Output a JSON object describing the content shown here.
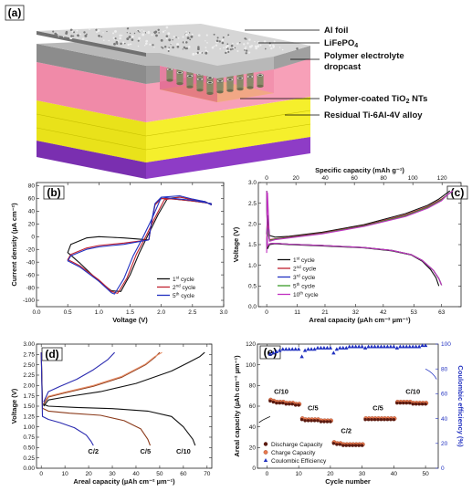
{
  "panels": {
    "a": {
      "letter": "(a)",
      "labels": [
        "Al foil",
        "LiFePO4",
        "Polymer electrolyte",
        "dropcast",
        "Residual Ti-6Al-4V alloy"
      ],
      "lifepo4_sub": "4",
      "nt_prefix": "Polymer-coated TiO",
      "nt_sub": "2",
      "nt_suffix": " NTs",
      "colors": {
        "foil": "#d6d6d6",
        "electrolyte": "#f08aa8",
        "nanotubes": "#f5ef2c",
        "alloy": "#8e3cc6"
      }
    }
  },
  "chart_data": [
    {
      "id": "b",
      "letter": "(b)",
      "type": "line",
      "xlabel": "Voltage (V)",
      "ylabel": "Current density (µA cm⁻²)",
      "xlim": [
        0.0,
        3.0
      ],
      "ylim": [
        -110,
        85
      ],
      "xticks": [
        0.0,
        0.5,
        1.0,
        1.5,
        2.0,
        2.5,
        3.0
      ],
      "xticklabels": [
        "0.0",
        "0.5",
        "1.0",
        "1.5",
        "2.0",
        "2.5",
        "3.0"
      ],
      "yticks": [
        -100,
        -80,
        -60,
        -40,
        -20,
        0,
        20,
        40,
        60,
        80
      ],
      "yticklabels": [
        "-100",
        "-80",
        "-60",
        "-40",
        "-20",
        "0",
        "20",
        "40",
        "60",
        "80"
      ],
      "legend": "bottom-right",
      "series": [
        {
          "name": "1st cycle",
          "sup": "st",
          "base": "1",
          "rest": " cycle",
          "color": "#111111",
          "x": [
            1.8,
            1.4,
            1.2,
            1.0,
            0.8,
            0.55,
            0.5,
            0.7,
            1.0,
            1.2,
            1.35,
            1.5,
            1.65,
            1.8,
            1.95,
            2.1,
            2.3,
            2.5,
            2.7,
            2.8,
            2.8,
            2.5,
            2.2,
            2.0,
            1.9,
            1.85,
            1.8
          ],
          "y": [
            -5,
            -2,
            -1,
            0,
            -2,
            -12,
            -25,
            -42,
            -70,
            -85,
            -86,
            -60,
            -25,
            5,
            35,
            60,
            62,
            58,
            55,
            50,
            52,
            56,
            59,
            60,
            50,
            25,
            -5
          ]
        },
        {
          "name": "2nd cycle",
          "sup": "nd",
          "base": "2",
          "rest": " cycle",
          "color": "#c0202f",
          "x": [
            1.8,
            1.4,
            1.2,
            1.0,
            0.8,
            0.55,
            0.5,
            0.7,
            1.0,
            1.2,
            1.3,
            1.45,
            1.6,
            1.75,
            1.9,
            2.05,
            2.3,
            2.5,
            2.7,
            2.8,
            2.8,
            2.5,
            2.2,
            2.0,
            1.9,
            1.85,
            1.8
          ],
          "y": [
            -5,
            -10,
            -12,
            -14,
            -18,
            -28,
            -36,
            -46,
            -68,
            -86,
            -89,
            -65,
            -28,
            0,
            30,
            58,
            62,
            58,
            55,
            50,
            52,
            56,
            59,
            60,
            50,
            25,
            -5
          ]
        },
        {
          "name": "5th cycle",
          "sup": "th",
          "base": "5",
          "rest": " cycle",
          "color": "#2030c0",
          "x": [
            1.8,
            1.4,
            1.2,
            1.0,
            0.8,
            0.55,
            0.5,
            0.7,
            1.0,
            1.2,
            1.25,
            1.4,
            1.55,
            1.7,
            1.85,
            2.0,
            2.3,
            2.5,
            2.7,
            2.8,
            2.8,
            2.5,
            2.2,
            2.0,
            1.9,
            1.85,
            1.8
          ],
          "y": [
            -5,
            -12,
            -14,
            -16,
            -20,
            -30,
            -38,
            -48,
            -70,
            -88,
            -90,
            -66,
            -30,
            -2,
            28,
            62,
            64,
            59,
            55,
            50,
            52,
            57,
            60,
            62,
            52,
            27,
            -5
          ]
        }
      ]
    },
    {
      "id": "c",
      "letter": "(c)",
      "type": "line",
      "xlabel": "Areal capacity (µAh cm⁻² µm⁻¹)",
      "x2label": "Specific capacity (mAh g⁻¹)",
      "ylabel": "Voltage (V)",
      "xlim": [
        -3,
        70
      ],
      "ylim": [
        0.0,
        3.0
      ],
      "xticks": [
        0,
        11,
        21,
        32,
        42,
        53,
        63
      ],
      "xticklabels": [
        "0",
        "11",
        "21",
        "32",
        "42",
        "53",
        "63"
      ],
      "x2ticks": [
        0,
        20,
        40,
        60,
        80,
        100,
        120
      ],
      "x2ticklabels": [
        "0",
        "20",
        "40",
        "60",
        "80",
        "100",
        "120"
      ],
      "x2_per_x": 1.9,
      "yticks": [
        0.0,
        0.5,
        1.0,
        1.5,
        2.0,
        2.5,
        3.0
      ],
      "yticklabels": [
        "0.0",
        "0.5",
        "1.0",
        "1.5",
        "2.0",
        "2.5",
        "3.0"
      ],
      "legend": "bottom-right",
      "series": [
        {
          "name": "1st cycle",
          "base": "1",
          "sup": "st",
          "rest": " cycle",
          "color": "#111111",
          "x": [
            0,
            0.3,
            1,
            3,
            8,
            20,
            35,
            50,
            58,
            62,
            64,
            66,
            0,
            0.3,
            1,
            3,
            8,
            20,
            35,
            45,
            52,
            56,
            59,
            61,
            62
          ],
          "y": [
            1.75,
            2.2,
            1.72,
            1.68,
            1.7,
            1.8,
            1.98,
            2.25,
            2.45,
            2.6,
            2.7,
            2.8,
            2.8,
            1.4,
            1.5,
            1.52,
            1.5,
            1.47,
            1.42,
            1.35,
            1.25,
            1.1,
            0.9,
            0.7,
            0.5
          ],
          "split": 12
        },
        {
          "name": "2nd cycle",
          "base": "2",
          "sup": "nd",
          "rest": " cycle",
          "color": "#c0202f",
          "x": [
            0,
            0.3,
            1,
            3,
            8,
            20,
            35,
            50,
            58,
            63,
            65,
            67,
            0,
            0.3,
            1,
            3,
            8,
            20,
            35,
            45,
            52,
            56,
            60,
            62,
            63
          ],
          "y": [
            1.6,
            2.0,
            1.62,
            1.64,
            1.68,
            1.78,
            1.96,
            2.22,
            2.42,
            2.6,
            2.7,
            2.8,
            2.8,
            1.45,
            1.52,
            1.53,
            1.51,
            1.48,
            1.43,
            1.36,
            1.26,
            1.12,
            0.88,
            0.68,
            0.52
          ],
          "split": 12
        },
        {
          "name": "3rd cycle",
          "base": "3",
          "sup": "rd",
          "rest": " cycle",
          "color": "#2030c0",
          "x": [
            0,
            0.3,
            1,
            3,
            8,
            20,
            35,
            50,
            58,
            63,
            65,
            67,
            0,
            0.3,
            1,
            3,
            8,
            20,
            35,
            45,
            52,
            56,
            60,
            62,
            63
          ],
          "y": [
            1.5,
            1.9,
            1.6,
            1.63,
            1.67,
            1.77,
            1.95,
            2.2,
            2.4,
            2.58,
            2.7,
            2.8,
            2.8,
            1.46,
            1.52,
            1.53,
            1.51,
            1.48,
            1.43,
            1.36,
            1.26,
            1.12,
            0.88,
            0.68,
            0.52
          ],
          "split": 12
        },
        {
          "name": "5th cycle",
          "base": "5",
          "sup": "th",
          "rest": " cycle",
          "color": "#3a9a2a",
          "x": [
            0,
            0.3,
            1,
            3,
            8,
            20,
            35,
            50,
            58,
            63,
            65,
            67,
            0,
            0.3,
            1,
            3,
            8,
            20,
            35,
            45,
            52,
            56,
            60,
            62,
            63
          ],
          "y": [
            1.45,
            1.85,
            1.6,
            1.63,
            1.67,
            1.77,
            1.95,
            2.2,
            2.4,
            2.58,
            2.7,
            2.8,
            2.8,
            1.46,
            1.52,
            1.53,
            1.51,
            1.48,
            1.43,
            1.36,
            1.26,
            1.12,
            0.88,
            0.68,
            0.52
          ],
          "split": 12
        },
        {
          "name": "10th cycle",
          "base": "10",
          "sup": "th",
          "rest": " cycle",
          "color": "#c030c0",
          "x": [
            0,
            0.3,
            1,
            3,
            8,
            20,
            35,
            50,
            58,
            63,
            65,
            67,
            0,
            0.3,
            1,
            3,
            8,
            20,
            35,
            45,
            52,
            56,
            60,
            62,
            63
          ],
          "y": [
            1.3,
            2.75,
            1.58,
            1.62,
            1.66,
            1.76,
            1.94,
            2.18,
            2.38,
            2.56,
            2.7,
            2.8,
            2.8,
            1.47,
            1.52,
            1.53,
            1.51,
            1.48,
            1.43,
            1.36,
            1.26,
            1.12,
            0.88,
            0.68,
            0.52
          ],
          "split": 12
        }
      ]
    },
    {
      "id": "d",
      "letter": "(d)",
      "type": "line",
      "xlabel": "Areal capacity (µAh cm⁻² µm⁻¹)",
      "ylabel": "Voltage (V)",
      "xlim": [
        -2,
        72
      ],
      "ylim": [
        0.0,
        3.0
      ],
      "xticks": [
        0,
        10,
        20,
        30,
        40,
        50,
        60,
        70
      ],
      "xticklabels": [
        "0",
        "10",
        "20",
        "30",
        "40",
        "50",
        "60",
        "70"
      ],
      "yticks": [
        0.0,
        0.25,
        0.5,
        0.75,
        1.0,
        1.25,
        1.5,
        1.75,
        2.0,
        2.25,
        2.5,
        2.75,
        3.0
      ],
      "yticklabels": [
        "0.00",
        "0.25",
        "0.50",
        "0.75",
        "1.00",
        "1.25",
        "1.50",
        "1.75",
        "2.00",
        "2.25",
        "2.50",
        "2.75",
        "3.00"
      ],
      "series": [
        {
          "name": "C/10",
          "color": "#111111",
          "label_x": 60,
          "label_y": 0.35,
          "cx": [
            1,
            3,
            10,
            25,
            40,
            55,
            62,
            67,
            69
          ],
          "cy": [
            1.5,
            1.65,
            1.72,
            1.85,
            2.05,
            2.35,
            2.55,
            2.7,
            2.8
          ],
          "dx": [
            0,
            0.5,
            3,
            15,
            30,
            45,
            55,
            60,
            64,
            65
          ],
          "dy": [
            2.8,
            1.55,
            1.5,
            1.47,
            1.44,
            1.38,
            1.25,
            1.0,
            0.7,
            0.55
          ]
        },
        {
          "name": "C/5",
          "color": "#8b3a1a",
          "label_x": 44,
          "label_y": 0.35,
          "cx": [
            1,
            3,
            10,
            22,
            34,
            44,
            48,
            50
          ],
          "cy": [
            1.55,
            1.72,
            1.82,
            1.98,
            2.2,
            2.5,
            2.68,
            2.8
          ],
          "dx": [
            0,
            0.5,
            3,
            12,
            25,
            35,
            42,
            45,
            46
          ],
          "dy": [
            2.8,
            1.45,
            1.38,
            1.33,
            1.28,
            1.15,
            0.95,
            0.7,
            0.55
          ]
        },
        {
          "name": "C/5 (light)",
          "color": "#e8906a",
          "label_x": -1,
          "label_y": -1,
          "cx": [
            1,
            3,
            10,
            22,
            34,
            44,
            48,
            51
          ],
          "cy": [
            1.6,
            1.74,
            1.84,
            2.0,
            2.22,
            2.52,
            2.7,
            2.8
          ],
          "dx": [],
          "dy": []
        },
        {
          "name": "C/2",
          "color": "#2a2ab0",
          "label_x": 22,
          "label_y": 0.35,
          "cx": [
            1,
            3,
            8,
            15,
            22,
            28,
            31
          ],
          "cy": [
            1.6,
            1.85,
            1.98,
            2.15,
            2.38,
            2.62,
            2.8
          ],
          "dx": [
            0,
            0.5,
            3,
            8,
            14,
            19,
            21,
            22
          ],
          "dy": [
            2.8,
            1.25,
            1.18,
            1.1,
            0.98,
            0.8,
            0.65,
            0.55
          ]
        }
      ]
    },
    {
      "id": "e",
      "letter": "(e)",
      "type": "scatter",
      "xlabel": "Cycle number",
      "ylabel": "Areal capacity (µAh cm⁻² µm⁻¹)",
      "y2label": "Coulombic efficiency (%)",
      "xlim": [
        -3,
        54
      ],
      "ylim": [
        0,
        120
      ],
      "y2lim": [
        0,
        100
      ],
      "xticks": [
        0,
        10,
        20,
        30,
        40,
        50
      ],
      "xticklabels": [
        "0",
        "10",
        "20",
        "30",
        "40",
        "50"
      ],
      "yticks": [
        0,
        20,
        40,
        60,
        80,
        100,
        120
      ],
      "yticklabels": [
        "0",
        "20",
        "40",
        "60",
        "80",
        "100",
        "120"
      ],
      "y2ticks": [
        0,
        20,
        40,
        60,
        80,
        100
      ],
      "y2ticklabels": [
        "0",
        "20",
        "40",
        "60",
        "80",
        "100"
      ],
      "legend": "bottom-left",
      "legend_entries": [
        "Discharge Capacity",
        "Charge Capacity",
        "Coulombic Efficiency"
      ],
      "colors": {
        "discharge": "#5a1a10",
        "charge": "#e87a50",
        "ce": "#2030c0"
      },
      "rate_labels": [
        {
          "text": "C/10",
          "x": 4.5,
          "y": 72
        },
        {
          "text": "C/5",
          "x": 14.5,
          "y": 56
        },
        {
          "text": "C/2",
          "x": 25,
          "y": 34
        },
        {
          "text": "C/5",
          "x": 35,
          "y": 56
        },
        {
          "text": "C/10",
          "x": 46,
          "y": 72
        }
      ],
      "discharge": [
        65,
        64,
        63,
        63,
        63,
        62,
        62,
        62,
        61,
        61,
        47,
        46,
        46,
        46,
        46,
        46,
        45,
        45,
        45,
        45,
        24,
        23,
        23,
        22,
        22,
        22,
        22,
        22,
        22,
        22,
        47,
        47,
        47,
        47,
        47,
        47,
        47,
        47,
        47,
        47,
        63,
        63,
        63,
        63,
        63,
        62,
        62,
        62,
        62,
        62
      ],
      "charge": [
        66,
        65,
        64,
        64,
        64,
        63,
        63,
        63,
        62,
        62,
        48,
        47,
        47,
        47,
        47,
        47,
        46,
        46,
        46,
        46,
        25,
        24,
        24,
        23,
        23,
        23,
        23,
        23,
        23,
        23,
        48,
        48,
        48,
        48,
        48,
        48,
        48,
        48,
        48,
        48,
        64,
        64,
        64,
        64,
        64,
        63,
        63,
        63,
        63,
        63
      ],
      "ce": [
        92,
        93,
        94,
        95,
        96,
        96,
        96,
        96,
        96,
        96,
        90,
        95,
        96,
        96,
        96,
        97,
        97,
        97,
        97,
        97,
        93,
        96,
        97,
        97,
        97,
        98,
        98,
        98,
        98,
        98,
        97,
        98,
        98,
        98,
        98,
        98,
        98,
        98,
        98,
        98,
        97,
        98,
        98,
        98,
        98,
        98,
        98,
        98,
        99,
        99
      ]
    }
  ]
}
